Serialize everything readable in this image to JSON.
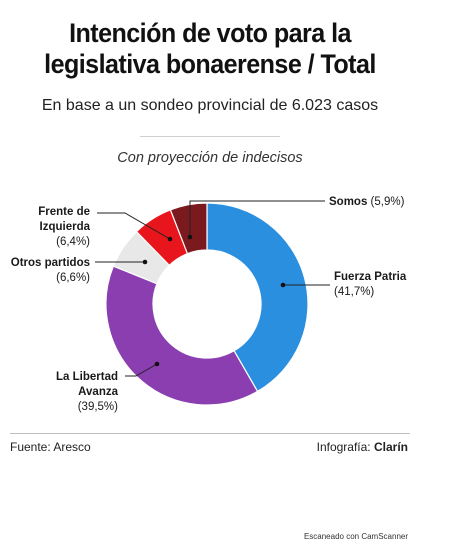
{
  "header": {
    "title_line1": "Intención de voto para la",
    "title_line2": "legislativa bonaerense / Total",
    "subtitle": "En base a un sondeo provincial de 6.023 casos",
    "note": "Con proyección de indecisos"
  },
  "chart_data": {
    "type": "pie",
    "variant": "donut",
    "series": [
      {
        "name": "Fuerza Patria",
        "value": 41.7,
        "pct_label": "(41,7%)",
        "color": "#2b8fe0"
      },
      {
        "name": "La Libertad Avanza",
        "value": 39.5,
        "pct_label": "(39,5%)",
        "color": "#8a3eb0"
      },
      {
        "name": "Otros partidos",
        "value": 6.6,
        "pct_label": "(6,6%)",
        "color": "#e8e8e8"
      },
      {
        "name": "Frente de Izquierda",
        "value": 6.4,
        "pct_label": "(6,4%)",
        "color": "#e8161c"
      },
      {
        "name": "Somos",
        "value": 5.9,
        "pct_label": "(5,9%)",
        "color": "#7a1a1f"
      }
    ]
  },
  "labels": {
    "fuerza_patria_name": "Fuerza Patria",
    "fuerza_patria_pct": "(41,7%)",
    "lla_name_1": "La Libertad",
    "lla_name_2": "Avanza",
    "lla_pct": "(39,5%)",
    "otros_name": "Otros partidos",
    "otros_pct": "(6,6%)",
    "fit_name_1": "Frente de",
    "fit_name_2": "Izquierda",
    "fit_pct": "(6,4%)",
    "somos_name": "Somos",
    "somos_pct": "(5,9%)"
  },
  "footer": {
    "source": "Fuente: Aresco",
    "credit_prefix": "Infografía: ",
    "credit_brand": "Clarín",
    "watermark": "Escaneado con CamScanner"
  }
}
